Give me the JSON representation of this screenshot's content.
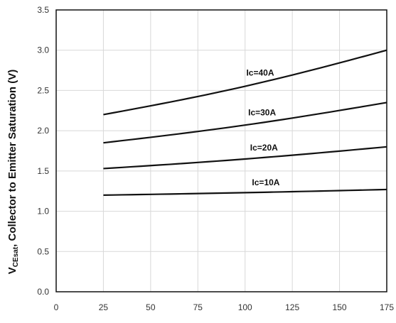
{
  "chart_data": {
    "type": "line",
    "title": "",
    "xlabel": "",
    "ylabel": {
      "prefix": "V",
      "subscript": "CEsat",
      "rest": ", Collector to Emitter Saturation (V)"
    },
    "xlim": [
      0,
      175
    ],
    "ylim": [
      0,
      3.5
    ],
    "x_ticks": [
      "0",
      "25",
      "50",
      "75",
      "100",
      "125",
      "150",
      "175"
    ],
    "y_ticks": [
      "0.0",
      "0.5",
      "1.0",
      "1.5",
      "2.0",
      "2.5",
      "3.0",
      "3.5"
    ],
    "grid": true,
    "x": [
      25,
      175
    ],
    "series": [
      {
        "name": "Ic=40A",
        "values": [
          2.2,
          3.0
        ]
      },
      {
        "name": "Ic=30A",
        "values": [
          1.85,
          2.35
        ]
      },
      {
        "name": "Ic=20A",
        "values": [
          1.53,
          1.8
        ]
      },
      {
        "name": "Ic=10A",
        "values": [
          1.2,
          1.27
        ]
      }
    ],
    "label_anchor_x": [
      108,
      109,
      110,
      111
    ]
  }
}
